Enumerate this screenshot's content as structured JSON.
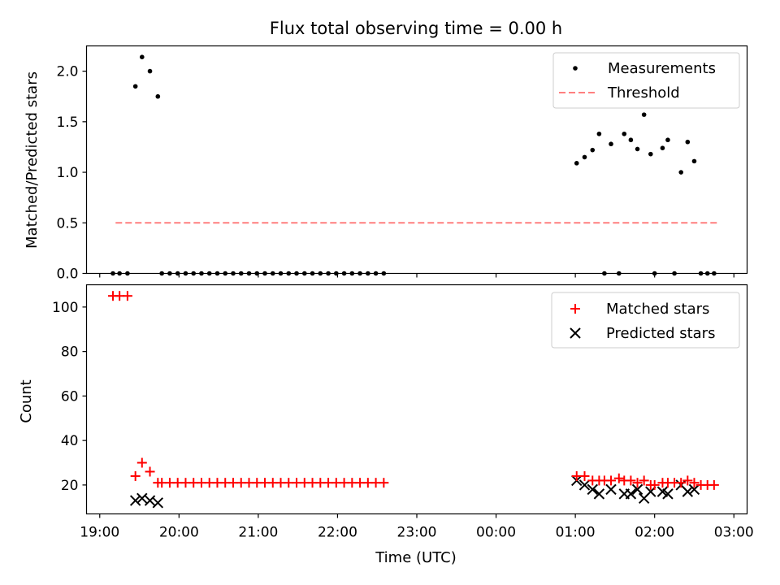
{
  "chart_data": [
    {
      "type": "scatter",
      "title": "Flux total observing time = 0.00 h",
      "xlabel": "",
      "ylabel": "Matched/Predicted stars",
      "xlim": [
        "18:50",
        "03:10"
      ],
      "ylim": [
        0,
        2.25
      ],
      "yticks": [
        {
          "value": 0.0,
          "label": "0.0"
        },
        {
          "value": 0.5,
          "label": "0.5"
        },
        {
          "value": 1.0,
          "label": "1.0"
        },
        {
          "value": 1.5,
          "label": "1.5"
        },
        {
          "value": 2.0,
          "label": "2.0"
        }
      ],
      "legend": {
        "placement": "top-right"
      },
      "series": [
        {
          "name": "Measurements",
          "kind": "points",
          "color": "#000000",
          "points": [
            [
              "19:10",
              0
            ],
            [
              "19:15",
              0
            ],
            [
              "19:21",
              0
            ],
            [
              "19:27",
              1.85
            ],
            [
              "19:32",
              2.14
            ],
            [
              "19:38",
              2.0
            ],
            [
              "19:44",
              1.75
            ],
            [
              "19:47",
              0
            ],
            [
              "19:53",
              0
            ],
            [
              "19:59",
              0
            ],
            [
              "20:05",
              0
            ],
            [
              "20:11",
              0
            ],
            [
              "20:17",
              0
            ],
            [
              "20:23",
              0
            ],
            [
              "20:29",
              0
            ],
            [
              "20:35",
              0
            ],
            [
              "20:41",
              0
            ],
            [
              "20:47",
              0
            ],
            [
              "20:53",
              0
            ],
            [
              "20:59",
              0
            ],
            [
              "21:05",
              0
            ],
            [
              "21:11",
              0
            ],
            [
              "21:17",
              0
            ],
            [
              "21:23",
              0
            ],
            [
              "21:29",
              0
            ],
            [
              "21:35",
              0
            ],
            [
              "21:41",
              0
            ],
            [
              "21:47",
              0
            ],
            [
              "21:53",
              0
            ],
            [
              "21:59",
              0
            ],
            [
              "22:05",
              0
            ],
            [
              "22:11",
              0
            ],
            [
              "22:17",
              0
            ],
            [
              "22:23",
              0
            ],
            [
              "22:29",
              0
            ],
            [
              "22:35",
              0
            ],
            [
              "01:01",
              1.09
            ],
            [
              "01:07",
              1.15
            ],
            [
              "01:13",
              1.22
            ],
            [
              "01:18",
              1.38
            ],
            [
              "01:22",
              0
            ],
            [
              "01:27",
              1.28
            ],
            [
              "01:33",
              0
            ],
            [
              "01:37",
              1.38
            ],
            [
              "01:42",
              1.32
            ],
            [
              "01:47",
              1.23
            ],
            [
              "01:52",
              1.57
            ],
            [
              "01:57",
              1.18
            ],
            [
              "02:00",
              0
            ],
            [
              "02:06",
              1.24
            ],
            [
              "02:10",
              1.32
            ],
            [
              "02:15",
              0
            ],
            [
              "02:20",
              1.0
            ],
            [
              "02:25",
              1.3
            ],
            [
              "02:30",
              1.11
            ],
            [
              "02:35",
              0
            ],
            [
              "02:40",
              0
            ],
            [
              "02:45",
              0
            ]
          ]
        },
        {
          "name": "Threshold",
          "kind": "dashed-line",
          "color": "#ff7f7f",
          "points": [
            [
              "19:12",
              0.5
            ],
            [
              "02:48",
              0.5
            ]
          ]
        }
      ]
    },
    {
      "type": "scatter",
      "title": "",
      "xlabel": "Time (UTC)",
      "ylabel": "Count",
      "xlim": [
        "18:50",
        "03:10"
      ],
      "ylim": [
        7,
        110
      ],
      "yticks": [
        {
          "value": 20,
          "label": "20"
        },
        {
          "value": 40,
          "label": "40"
        },
        {
          "value": 60,
          "label": "60"
        },
        {
          "value": 80,
          "label": "80"
        },
        {
          "value": 100,
          "label": "100"
        }
      ],
      "xticks": [
        {
          "value": "19:00",
          "label": "19:00"
        },
        {
          "value": "20:00",
          "label": "20:00"
        },
        {
          "value": "21:00",
          "label": "21:00"
        },
        {
          "value": "22:00",
          "label": "22:00"
        },
        {
          "value": "23:00",
          "label": "23:00"
        },
        {
          "value": "00:00",
          "label": "00:00"
        },
        {
          "value": "01:00",
          "label": "01:00"
        },
        {
          "value": "02:00",
          "label": "02:00"
        },
        {
          "value": "03:00",
          "label": "03:00"
        }
      ],
      "legend": {
        "placement": "top-right"
      },
      "series": [
        {
          "name": "Matched stars",
          "kind": "plus",
          "color": "#ff0000",
          "points": [
            [
              "19:10",
              105
            ],
            [
              "19:15",
              105
            ],
            [
              "19:21",
              105
            ],
            [
              "19:27",
              24
            ],
            [
              "19:32",
              30
            ],
            [
              "19:38",
              26
            ],
            [
              "19:44",
              21
            ],
            [
              "19:47",
              21
            ],
            [
              "19:53",
              21
            ],
            [
              "19:59",
              21
            ],
            [
              "20:05",
              21
            ],
            [
              "20:11",
              21
            ],
            [
              "20:17",
              21
            ],
            [
              "20:23",
              21
            ],
            [
              "20:29",
              21
            ],
            [
              "20:35",
              21
            ],
            [
              "20:41",
              21
            ],
            [
              "20:47",
              21
            ],
            [
              "20:53",
              21
            ],
            [
              "20:59",
              21
            ],
            [
              "21:05",
              21
            ],
            [
              "21:11",
              21
            ],
            [
              "21:17",
              21
            ],
            [
              "21:23",
              21
            ],
            [
              "21:29",
              21
            ],
            [
              "21:35",
              21
            ],
            [
              "21:41",
              21
            ],
            [
              "21:47",
              21
            ],
            [
              "21:53",
              21
            ],
            [
              "21:59",
              21
            ],
            [
              "22:05",
              21
            ],
            [
              "22:11",
              21
            ],
            [
              "22:17",
              21
            ],
            [
              "22:23",
              21
            ],
            [
              "22:29",
              21
            ],
            [
              "22:35",
              21
            ],
            [
              "01:01",
              24
            ],
            [
              "01:07",
              24
            ],
            [
              "01:13",
              22
            ],
            [
              "01:18",
              22
            ],
            [
              "01:22",
              22
            ],
            [
              "01:27",
              22
            ],
            [
              "01:33",
              23
            ],
            [
              "01:37",
              22
            ],
            [
              "01:42",
              22
            ],
            [
              "01:47",
              21
            ],
            [
              "01:52",
              22
            ],
            [
              "01:57",
              20
            ],
            [
              "02:00",
              20
            ],
            [
              "02:06",
              21
            ],
            [
              "02:10",
              21
            ],
            [
              "02:15",
              21
            ],
            [
              "02:20",
              21
            ],
            [
              "02:25",
              22
            ],
            [
              "02:30",
              21
            ],
            [
              "02:35",
              20
            ],
            [
              "02:40",
              20
            ],
            [
              "02:45",
              20
            ]
          ]
        },
        {
          "name": "Predicted stars",
          "kind": "x",
          "color": "#000000",
          "points": [
            [
              "19:27",
              13
            ],
            [
              "19:32",
              14
            ],
            [
              "19:38",
              13
            ],
            [
              "19:44",
              12
            ],
            [
              "01:01",
              22
            ],
            [
              "01:07",
              20
            ],
            [
              "01:13",
              18
            ],
            [
              "01:18",
              16
            ],
            [
              "01:27",
              18
            ],
            [
              "01:37",
              16
            ],
            [
              "01:42",
              16
            ],
            [
              "01:47",
              18
            ],
            [
              "01:52",
              14
            ],
            [
              "01:57",
              17
            ],
            [
              "02:06",
              17
            ],
            [
              "02:10",
              16
            ],
            [
              "02:20",
              20
            ],
            [
              "02:25",
              17
            ],
            [
              "02:30",
              18
            ]
          ]
        }
      ]
    }
  ]
}
